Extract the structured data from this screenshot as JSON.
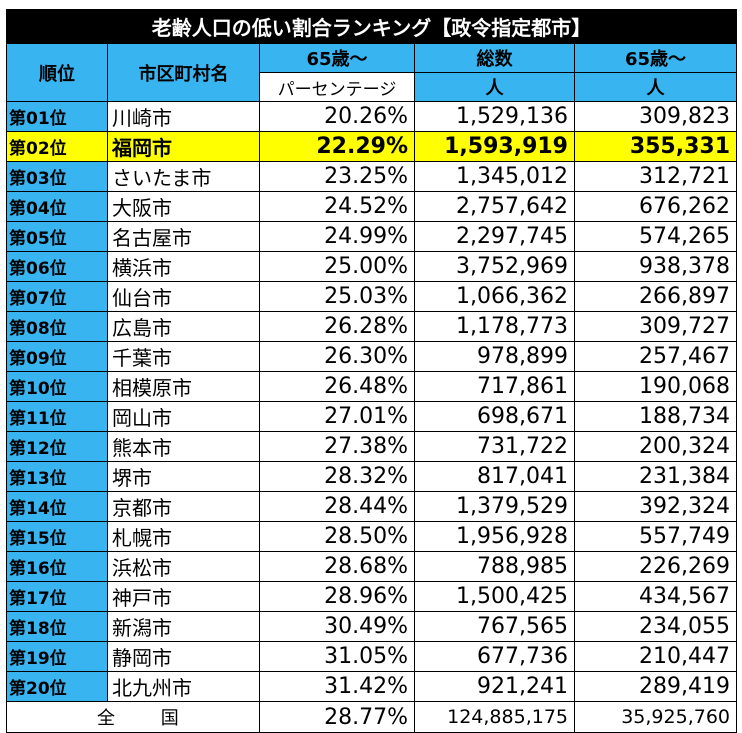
{
  "title": "老齢人口の低い割合ランキング【政令指定都市】",
  "headers": {
    "rank": "順位",
    "city": "市区町村名",
    "pct_top": "65歳～",
    "pct_bottom": "パーセンテージ",
    "total_top": "総数",
    "total_bottom": "人",
    "elderly_top": "65歳～",
    "elderly_bottom": "人"
  },
  "rows": [
    {
      "rank": "第01位",
      "city": "川崎市",
      "pct": "20.26%",
      "total": "1,529,136",
      "elderly": "309,823"
    },
    {
      "rank": "第02位",
      "city": "福岡市",
      "pct": "22.29%",
      "total": "1,593,919",
      "elderly": "355,331"
    },
    {
      "rank": "第03位",
      "city": "さいたま市",
      "pct": "23.25%",
      "total": "1,345,012",
      "elderly": "312,721"
    },
    {
      "rank": "第04位",
      "city": "大阪市",
      "pct": "24.52%",
      "total": "2,757,642",
      "elderly": "676,262"
    },
    {
      "rank": "第05位",
      "city": "名古屋市",
      "pct": "24.99%",
      "total": "2,297,745",
      "elderly": "574,265"
    },
    {
      "rank": "第06位",
      "city": "横浜市",
      "pct": "25.00%",
      "total": "3,752,969",
      "elderly": "938,378"
    },
    {
      "rank": "第07位",
      "city": "仙台市",
      "pct": "25.03%",
      "total": "1,066,362",
      "elderly": "266,897"
    },
    {
      "rank": "第08位",
      "city": "広島市",
      "pct": "26.28%",
      "total": "1,178,773",
      "elderly": "309,727"
    },
    {
      "rank": "第09位",
      "city": "千葉市",
      "pct": "26.30%",
      "total": "978,899",
      "elderly": "257,467"
    },
    {
      "rank": "第10位",
      "city": "相模原市",
      "pct": "26.48%",
      "total": "717,861",
      "elderly": "190,068"
    },
    {
      "rank": "第11位",
      "city": "岡山市",
      "pct": "27.01%",
      "total": "698,671",
      "elderly": "188,734"
    },
    {
      "rank": "第12位",
      "city": "熊本市",
      "pct": "27.38%",
      "total": "731,722",
      "elderly": "200,324"
    },
    {
      "rank": "第13位",
      "city": "堺市",
      "pct": "28.32%",
      "total": "817,041",
      "elderly": "231,384"
    },
    {
      "rank": "第14位",
      "city": "京都市",
      "pct": "28.44%",
      "total": "1,379,529",
      "elderly": "392,324"
    },
    {
      "rank": "第15位",
      "city": "札幌市",
      "pct": "28.50%",
      "total": "1,956,928",
      "elderly": "557,749"
    },
    {
      "rank": "第16位",
      "city": "浜松市",
      "pct": "28.68%",
      "total": "788,985",
      "elderly": "226,269"
    },
    {
      "rank": "第17位",
      "city": "神戸市",
      "pct": "28.96%",
      "total": "1,500,425",
      "elderly": "434,567"
    },
    {
      "rank": "第18位",
      "city": "新潟市",
      "pct": "30.49%",
      "total": "767,565",
      "elderly": "234,055"
    },
    {
      "rank": "第19位",
      "city": "静岡市",
      "pct": "31.05%",
      "total": "677,736",
      "elderly": "210,447"
    },
    {
      "rank": "第20位",
      "city": "北九州市",
      "pct": "31.42%",
      "total": "921,241",
      "elderly": "289,419"
    }
  ],
  "highlight_row_index": 1,
  "highlight_color": "#ffff00",
  "header_color": "#38b4f0",
  "national": {
    "label": "全 国",
    "pct": "28.77%",
    "total": "124,885,175",
    "elderly": "35,925,760"
  }
}
